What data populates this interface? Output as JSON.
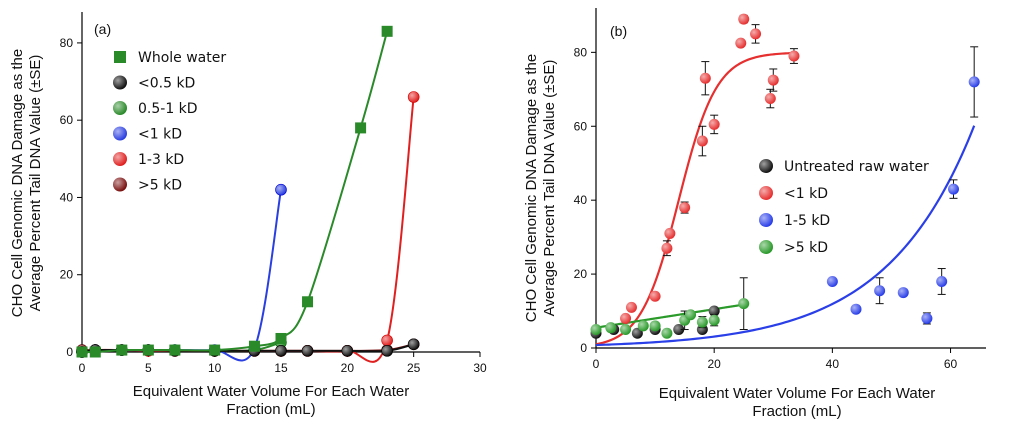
{
  "chart_data": [
    {
      "type": "line",
      "panel_label": "(a)",
      "xlabel": [
        "Equivalent Water Volume For Each Water",
        "Fraction (mL)"
      ],
      "ylabel": [
        "CHO Cell Genomic DNA Damage as the",
        "Average Percent Tail DNA Value (±SE)"
      ],
      "xlim": [
        0,
        30
      ],
      "ylim": [
        0,
        88
      ],
      "xticks": [
        "0",
        "5",
        "10",
        "15",
        "20",
        "25",
        "30"
      ],
      "yticks": [
        "0",
        "20",
        "40",
        "60",
        "80"
      ],
      "xtick_values": [
        0,
        5,
        10,
        15,
        20,
        25,
        30
      ],
      "ytick_values": [
        0,
        20,
        40,
        60,
        80
      ],
      "legend_position": "top-left",
      "series": [
        {
          "name": "Whole water",
          "color": "#2a8a2a",
          "marker": "square",
          "x": [
            0,
            1,
            3,
            5,
            7,
            10,
            13,
            15,
            17,
            21,
            23
          ],
          "y": [
            0,
            0,
            0.5,
            0.5,
            0.5,
            0.5,
            1.5,
            3.5,
            13,
            58,
            83
          ]
        },
        {
          "name": "<0.5 kD",
          "color": "#111111",
          "marker": "circle",
          "x": [
            0,
            1,
            3,
            5,
            7,
            10,
            13,
            15,
            17,
            20,
            23,
            25
          ],
          "y": [
            0,
            0.5,
            0.5,
            0.5,
            0.3,
            0.3,
            0.3,
            0.3,
            0.3,
            0.3,
            0.3,
            2
          ]
        },
        {
          "name": "0.5-1 kD",
          "color": "#2a8a2a",
          "marker": "circle",
          "x": [
            0,
            1,
            3,
            5,
            7,
            10,
            13,
            15
          ],
          "y": [
            0,
            0.5,
            0.5,
            0.5,
            0.5,
            0.3,
            0.5,
            2.5
          ]
        },
        {
          "name": "<1 kD",
          "color": "#2a3fe0",
          "marker": "circle",
          "x": [
            0,
            1,
            3,
            5,
            7,
            10,
            13,
            15
          ],
          "y": [
            0,
            0.5,
            0.5,
            0.5,
            0.5,
            0.5,
            1,
            42
          ]
        },
        {
          "name": "1-3 kD",
          "color": "#e02020",
          "marker": "circle",
          "x": [
            0,
            1,
            3,
            5,
            7,
            10,
            13,
            15,
            17,
            20,
            23,
            25
          ],
          "y": [
            0,
            0.5,
            0.5,
            0.3,
            0.3,
            0.3,
            0.3,
            0.3,
            0.3,
            0.3,
            3,
            66
          ]
        },
        {
          "name": ">5 kD",
          "color": "#7a1010",
          "marker": "circle",
          "x": [
            0,
            1,
            3,
            5,
            7,
            10,
            13,
            15,
            17,
            20,
            23,
            25
          ],
          "y": [
            0.5,
            0.5,
            0.5,
            0.5,
            0.3,
            0.3,
            0.3,
            0.3,
            0.3,
            0.3,
            0.5,
            2
          ]
        }
      ]
    },
    {
      "type": "scatter",
      "panel_label": "(b)",
      "xlabel": [
        "Equivalent Water Volume For Each Water",
        "Fraction (mL)"
      ],
      "ylabel": [
        "CHO Cell Genomic DNA Damage as the",
        "Average Percent Tail DNA Value (±SE)"
      ],
      "xlim": [
        0,
        66
      ],
      "ylim": [
        0,
        92
      ],
      "xticks": [
        "0",
        "20",
        "40",
        "60"
      ],
      "yticks": [
        "0",
        "20",
        "40",
        "60",
        "80"
      ],
      "xtick_values": [
        0,
        20,
        40,
        60
      ],
      "ytick_values": [
        0,
        20,
        40,
        60,
        80
      ],
      "legend_position": "center-right",
      "series": [
        {
          "name": "Untreated raw water",
          "color": "#111111",
          "points": [
            [
              0,
              4
            ],
            [
              3,
              5
            ],
            [
              7,
              4
            ],
            [
              10,
              5
            ],
            [
              14,
              5
            ],
            [
              18,
              5
            ],
            [
              20,
              10
            ]
          ]
        },
        {
          "name": "<1 kD",
          "color": "#e63030",
          "points": [
            [
              5,
              8
            ],
            [
              6,
              11
            ],
            [
              10,
              14
            ],
            [
              12,
              27
            ],
            [
              12.5,
              31
            ],
            [
              15,
              38
            ],
            [
              18,
              56
            ],
            [
              18.5,
              73
            ],
            [
              20,
              60.5
            ],
            [
              24.5,
              82.5
            ],
            [
              25,
              89
            ],
            [
              27,
              85
            ],
            [
              29.5,
              67.5
            ],
            [
              30,
              72.5
            ],
            [
              33.5,
              79
            ]
          ],
          "errors": [
            [
              18,
              56,
              4
            ],
            [
              18.5,
              73,
              4.5
            ],
            [
              20,
              60.5,
              2.5
            ],
            [
              15,
              38,
              1.5
            ],
            [
              12,
              27,
              2
            ],
            [
              29.5,
              67.5,
              2.5
            ],
            [
              30,
              72.5,
              3
            ],
            [
              33.5,
              79,
              2
            ],
            [
              27,
              85,
              2.5
            ],
            [
              25,
              89,
              1
            ]
          ],
          "fit": {
            "type": "sigmoid",
            "ymin": 0,
            "ymax": 80,
            "x50": 14,
            "slope": 3.2,
            "xrange": [
              0,
              33.5
            ]
          }
        },
        {
          "name": "1-5 kD",
          "color": "#2a3fe8",
          "points": [
            [
              40,
              18
            ],
            [
              44,
              10.5
            ],
            [
              48,
              15.5
            ],
            [
              52,
              15
            ],
            [
              56,
              8
            ],
            [
              58.5,
              18
            ],
            [
              60.5,
              43
            ],
            [
              64,
              72
            ]
          ],
          "errors": [
            [
              48,
              15.5,
              3.5
            ],
            [
              56,
              8,
              1.5
            ],
            [
              58.5,
              18,
              3.5
            ],
            [
              60.5,
              43,
              2.5
            ],
            [
              64,
              72,
              9.5
            ]
          ],
          "fit": {
            "type": "exponential",
            "a": 0.8,
            "b": 0.0675,
            "xrange": [
              0,
              64
            ]
          }
        },
        {
          "name": ">5 kD",
          "color": "#2a9a2a",
          "points": [
            [
              0,
              5
            ],
            [
              2.5,
              5.5
            ],
            [
              5,
              5
            ],
            [
              8,
              6
            ],
            [
              10,
              6
            ],
            [
              12,
              4
            ],
            [
              15,
              7.5
            ],
            [
              16,
              9
            ],
            [
              18,
              7
            ],
            [
              20,
              7.5
            ],
            [
              25,
              12
            ]
          ],
          "errors": [
            [
              25,
              12,
              7
            ],
            [
              15,
              7.5,
              2.5
            ],
            [
              18,
              7,
              1.5
            ],
            [
              20,
              7.5,
              1.5
            ]
          ],
          "fit": {
            "type": "linear",
            "a": 5.5,
            "b": 0.25,
            "xrange": [
              0,
              25
            ]
          }
        }
      ]
    }
  ]
}
